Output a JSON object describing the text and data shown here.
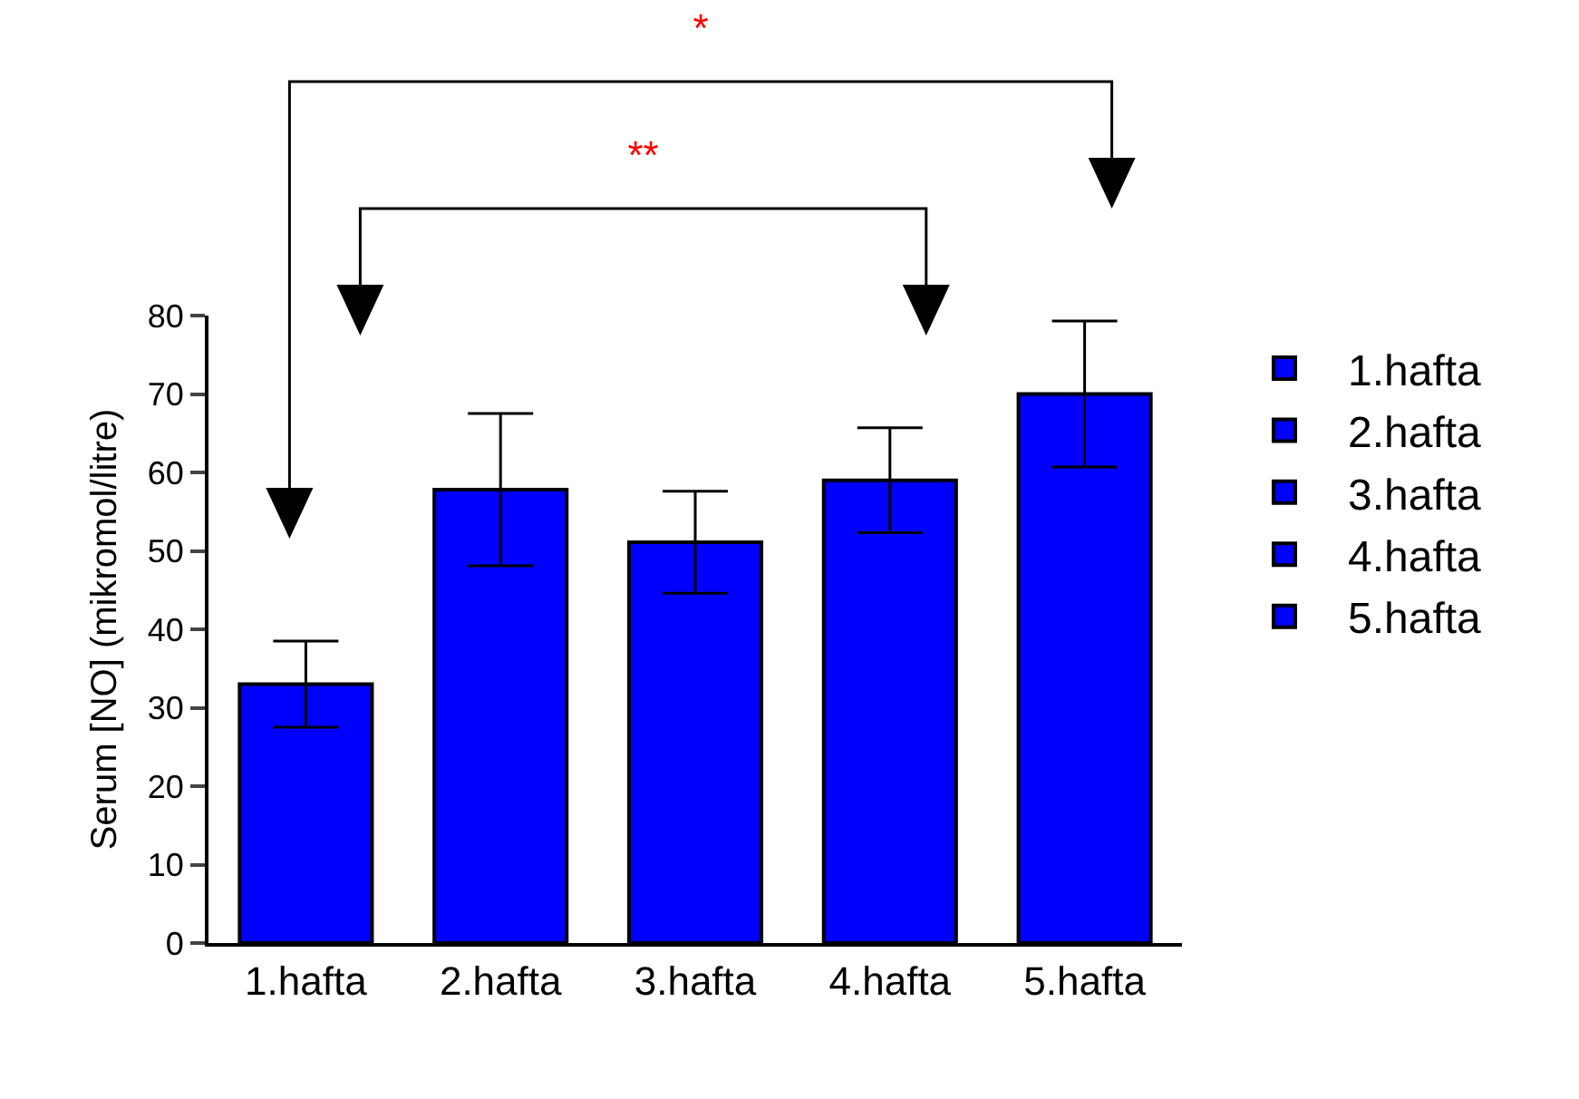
{
  "chart_data": {
    "type": "bar",
    "ylabel": "Serum [NO] (mikromol/litre)",
    "categories": [
      "1.hafta",
      "2.hafta",
      "3.hafta",
      "4.hafta",
      "5.hafta"
    ],
    "series": [
      {
        "name": "1.hafta",
        "color": "#0000ff",
        "values": [
          33,
          null,
          null,
          null,
          null
        ],
        "errors": [
          5.5,
          null,
          null,
          null,
          null
        ]
      },
      {
        "name": "2.hafta",
        "color": "#0000ff",
        "values": [
          null,
          57.8,
          null,
          null,
          null
        ],
        "errors": [
          null,
          9.7,
          null,
          null,
          null
        ]
      },
      {
        "name": "3.hafta",
        "color": "#0000ff",
        "values": [
          null,
          null,
          51.1,
          null,
          null
        ],
        "errors": [
          null,
          null,
          6.5,
          null,
          null
        ]
      },
      {
        "name": "4.hafta",
        "color": "#0000ff",
        "values": [
          null,
          null,
          null,
          59,
          null
        ],
        "errors": [
          null,
          null,
          null,
          6.7,
          null
        ]
      },
      {
        "name": "5.hafta",
        "color": "#0000ff",
        "values": [
          null,
          null,
          null,
          null,
          70
        ],
        "errors": [
          null,
          null,
          null,
          null,
          9.3
        ]
      }
    ],
    "ylim": [
      0,
      80
    ],
    "yticks": [
      0,
      10,
      20,
      30,
      40,
      50,
      60,
      70,
      80
    ],
    "grid": false,
    "legend": "right",
    "annotations": [
      "*",
      "**"
    ]
  }
}
